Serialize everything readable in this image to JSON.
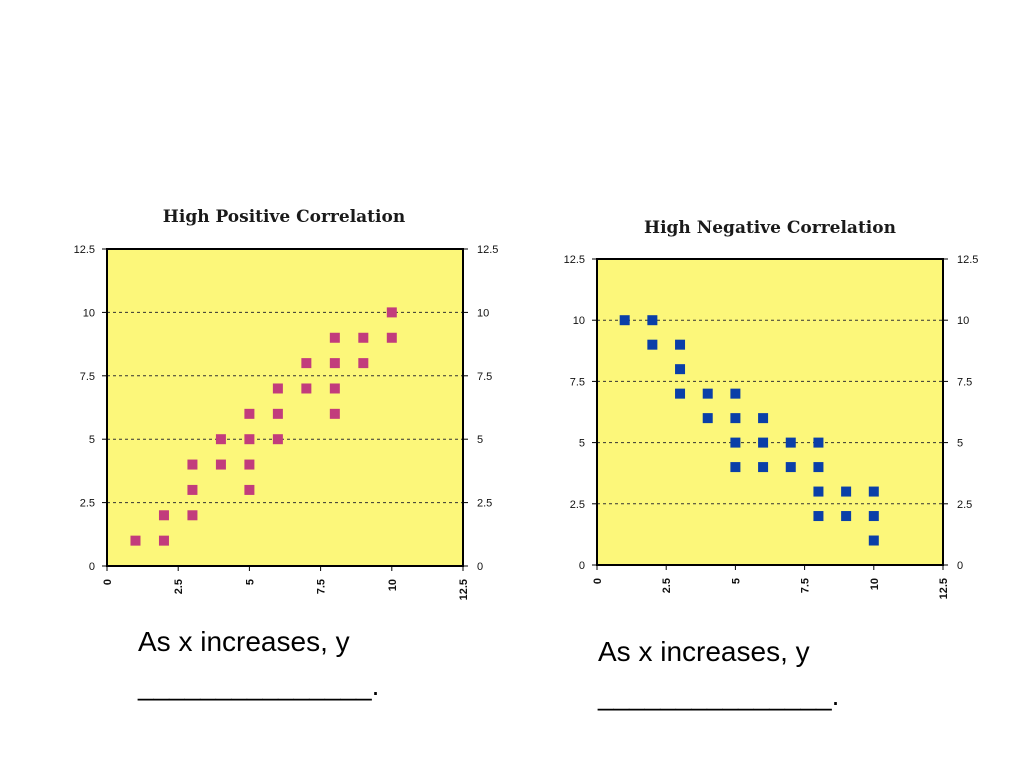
{
  "colors": {
    "plot_background": "#fcf77a",
    "positive_marker": "#c23c7c",
    "negative_marker": "#0a3fa8",
    "axis": "#000000",
    "gridline": "#333333"
  },
  "chart_data": [
    {
      "type": "scatter",
      "title": "High Positive Correlation",
      "xlim": [
        0,
        12.5
      ],
      "ylim": [
        0,
        12.5
      ],
      "x_ticks": [
        "0",
        "2.5",
        "5",
        "7.5",
        "10",
        "12.5"
      ],
      "y_ticks": [
        "0",
        "2.5",
        "5",
        "7.5",
        "10",
        "12.5"
      ],
      "y_axis_both_sides": true,
      "grid": "horizontal dashed",
      "marker": "square",
      "points": [
        [
          1,
          1
        ],
        [
          2,
          1
        ],
        [
          2,
          2
        ],
        [
          3,
          2
        ],
        [
          3,
          3
        ],
        [
          3,
          4
        ],
        [
          4,
          4
        ],
        [
          4,
          5
        ],
        [
          5,
          3
        ],
        [
          5,
          4
        ],
        [
          5,
          5
        ],
        [
          5,
          6
        ],
        [
          6,
          5
        ],
        [
          6,
          6
        ],
        [
          6,
          7
        ],
        [
          7,
          7
        ],
        [
          7,
          8
        ],
        [
          8,
          6
        ],
        [
          8,
          7
        ],
        [
          8,
          8
        ],
        [
          8,
          9
        ],
        [
          9,
          8
        ],
        [
          9,
          9
        ],
        [
          10,
          9
        ],
        [
          10,
          10
        ]
      ]
    },
    {
      "type": "scatter",
      "title": "High Negative Correlation",
      "xlim": [
        0,
        12.5
      ],
      "ylim": [
        0,
        12.5
      ],
      "x_ticks": [
        "0",
        "2.5",
        "5",
        "7.5",
        "10",
        "12.5"
      ],
      "y_ticks": [
        "0",
        "2.5",
        "5",
        "7.5",
        "10",
        "12.5"
      ],
      "y_axis_both_sides": true,
      "grid": "horizontal dashed",
      "marker": "square",
      "points": [
        [
          1,
          10
        ],
        [
          2,
          10
        ],
        [
          2,
          9
        ],
        [
          3,
          9
        ],
        [
          3,
          8
        ],
        [
          3,
          7
        ],
        [
          4,
          7
        ],
        [
          4,
          6
        ],
        [
          5,
          7
        ],
        [
          5,
          6
        ],
        [
          5,
          5
        ],
        [
          5,
          4
        ],
        [
          6,
          6
        ],
        [
          6,
          5
        ],
        [
          6,
          4
        ],
        [
          7,
          5
        ],
        [
          7,
          4
        ],
        [
          8,
          5
        ],
        [
          8,
          4
        ],
        [
          8,
          3
        ],
        [
          8,
          2
        ],
        [
          9,
          3
        ],
        [
          9,
          2
        ],
        [
          10,
          3
        ],
        [
          10,
          2
        ],
        [
          10,
          1
        ]
      ]
    }
  ],
  "captions": {
    "left": {
      "line1": "As x increases, y",
      "line2": "_______________."
    },
    "right": {
      "line1": "As x increases, y",
      "line2": "_______________."
    }
  }
}
